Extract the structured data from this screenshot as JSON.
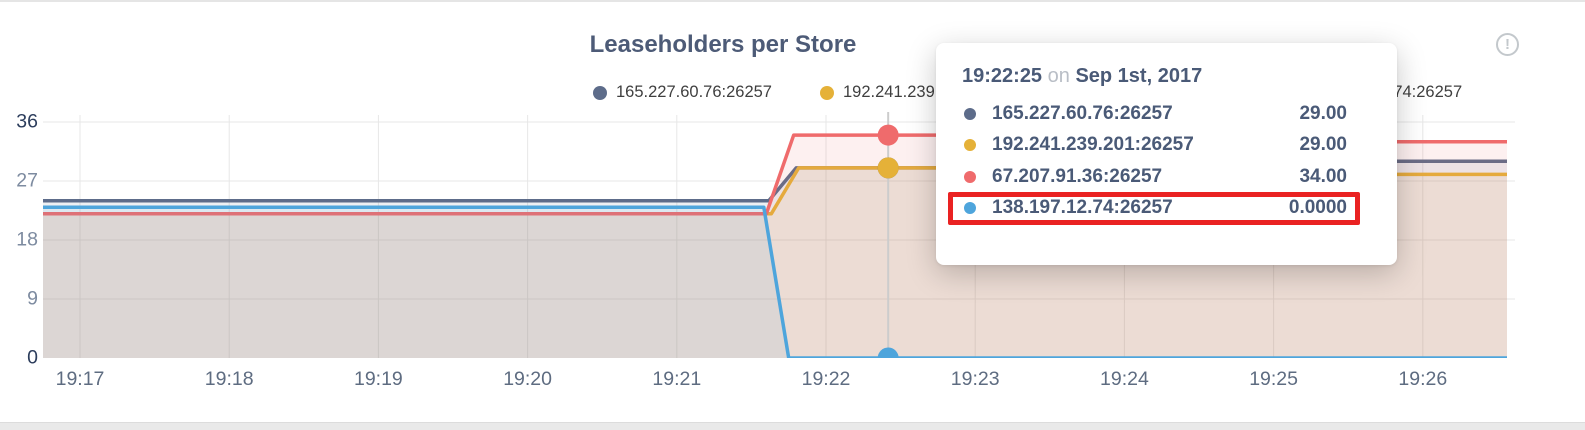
{
  "panel": {
    "title": "Leaseholders per Store",
    "info_icon_glyph": "!"
  },
  "legend": {
    "items": [
      {
        "label": "165.227.60.76:26257",
        "color": "#5d6c8a"
      },
      {
        "label": "192.241.239.201:26257",
        "color": "#e5b138"
      },
      {
        "label": "67.207.91.36:26257",
        "color": "#ef6b6c"
      },
      {
        "label": "138.197.12.74:26257",
        "color": "#4ea5dc"
      }
    ]
  },
  "chart_data": {
    "type": "area",
    "title": "Leaseholders per Store",
    "x_ticks": [
      "19:17",
      "19:18",
      "19:19",
      "19:20",
      "19:21",
      "19:22",
      "19:23",
      "19:24",
      "19:25",
      "19:26"
    ],
    "y_ticks": [
      36,
      27,
      18,
      9,
      0
    ],
    "ylim": [
      0,
      37.5
    ],
    "x_range": [
      "19:16:45",
      "19:26:34"
    ],
    "grid": true,
    "legend_position": "top",
    "fill_opacity": 0.1,
    "series": [
      {
        "name": "165.227.60.76:26257",
        "color": "#5d6c8a",
        "points": [
          [
            "19:16:45",
            24
          ],
          [
            "19:21:37",
            24
          ],
          [
            "19:21:48",
            29
          ],
          [
            "19:24:28",
            29
          ],
          [
            "19:24:40",
            30
          ],
          [
            "19:26:34",
            30
          ]
        ]
      },
      {
        "name": "192.241.239.201:26257",
        "color": "#e5b138",
        "points": [
          [
            "19:16:45",
            22
          ],
          [
            "19:21:38",
            22
          ],
          [
            "19:21:49",
            29
          ],
          [
            "19:24:28",
            29
          ],
          [
            "19:24:40",
            28
          ],
          [
            "19:26:34",
            28
          ]
        ]
      },
      {
        "name": "67.207.91.36:26257",
        "color": "#ef6b6c",
        "points": [
          [
            "19:16:45",
            22
          ],
          [
            "19:21:36",
            22
          ],
          [
            "19:21:47",
            34
          ],
          [
            "19:24:28",
            34
          ],
          [
            "19:24:40",
            33
          ],
          [
            "19:26:34",
            33
          ]
        ]
      },
      {
        "name": "138.197.12.74:26257",
        "color": "#4ea5dc",
        "points": [
          [
            "19:16:45",
            23
          ],
          [
            "19:21:35",
            23
          ],
          [
            "19:21:45",
            0
          ],
          [
            "19:26:34",
            0
          ]
        ]
      }
    ],
    "hover": {
      "time": "19:22:25"
    }
  },
  "tooltip": {
    "time": "19:22:25",
    "on_word": "on",
    "date": "Sep 1st, 2017",
    "highlight_color": "#ea2222",
    "rows": [
      {
        "label": "165.227.60.76:26257",
        "value": "29.00",
        "color": "#5d6c8a",
        "highlighted": false
      },
      {
        "label": "192.241.239.201:26257",
        "value": "29.00",
        "color": "#e5b138",
        "highlighted": false
      },
      {
        "label": "67.207.91.36:26257",
        "value": "34.00",
        "color": "#ef6b6c",
        "highlighted": false
      },
      {
        "label": "138.197.12.74:26257",
        "value": "0.0000",
        "color": "#4ea5dc",
        "highlighted": true
      }
    ]
  }
}
